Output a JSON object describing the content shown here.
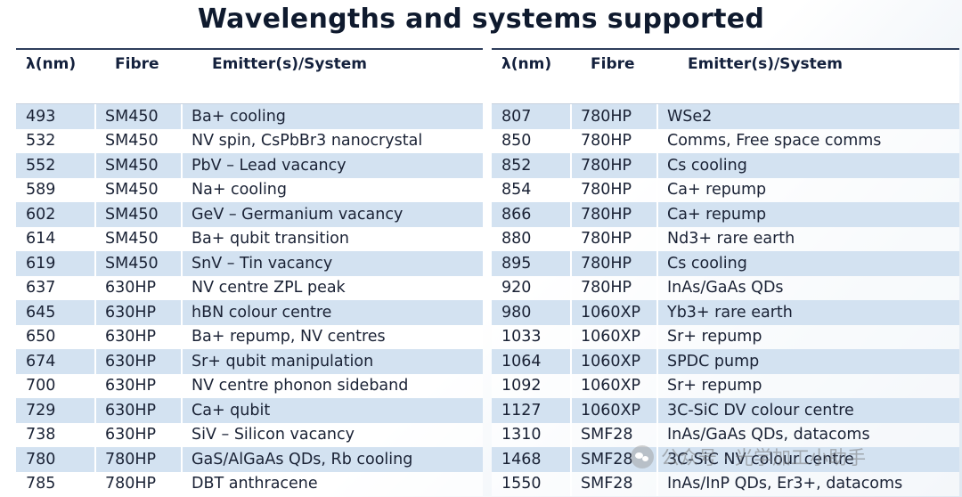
{
  "title": "Wavelengths and systems supported",
  "headers": {
    "wavelength": "λ(nm)",
    "fibre": "Fibre",
    "emitter": "Emitter(s)/System"
  },
  "left_rows": [
    {
      "wl": "493",
      "fibre": "SM450",
      "emitter": "Ba+ cooling"
    },
    {
      "wl": "532",
      "fibre": "SM450",
      "emitter": "NV spin, CsPbBr3 nanocrystal"
    },
    {
      "wl": "552",
      "fibre": "SM450",
      "emitter": "PbV – Lead vacancy"
    },
    {
      "wl": "589",
      "fibre": "SM450",
      "emitter": "Na+ cooling"
    },
    {
      "wl": "602",
      "fibre": "SM450",
      "emitter": "GeV – Germanium vacancy"
    },
    {
      "wl": "614",
      "fibre": "SM450",
      "emitter": "Ba+ qubit transition"
    },
    {
      "wl": "619",
      "fibre": "SM450",
      "emitter": "SnV – Tin vacancy"
    },
    {
      "wl": "637",
      "fibre": "630HP",
      "emitter": "NV centre ZPL peak"
    },
    {
      "wl": "645",
      "fibre": "630HP",
      "emitter": "hBN colour centre"
    },
    {
      "wl": "650",
      "fibre": "630HP",
      "emitter": "Ba+ repump, NV centres"
    },
    {
      "wl": "674",
      "fibre": "630HP",
      "emitter": "Sr+ qubit manipulation"
    },
    {
      "wl": "700",
      "fibre": "630HP",
      "emitter": "NV centre phonon sideband"
    },
    {
      "wl": "729",
      "fibre": "630HP",
      "emitter": "Ca+ qubit"
    },
    {
      "wl": "738",
      "fibre": "630HP",
      "emitter": "SiV – Silicon vacancy"
    },
    {
      "wl": "780",
      "fibre": "780HP",
      "emitter": "GaS/AlGaAs QDs, Rb cooling"
    },
    {
      "wl": "785",
      "fibre": "780HP",
      "emitter": "DBT anthracene"
    }
  ],
  "right_rows": [
    {
      "wl": "807",
      "fibre": "780HP",
      "emitter": "WSe2"
    },
    {
      "wl": "850",
      "fibre": "780HP",
      "emitter": "Comms, Free space comms"
    },
    {
      "wl": "852",
      "fibre": "780HP",
      "emitter": "Cs cooling"
    },
    {
      "wl": "854",
      "fibre": "780HP",
      "emitter": "Ca+ repump"
    },
    {
      "wl": "866",
      "fibre": "780HP",
      "emitter": "Ca+ repump"
    },
    {
      "wl": "880",
      "fibre": "780HP",
      "emitter": "Nd3+ rare earth"
    },
    {
      "wl": "895",
      "fibre": "780HP",
      "emitter": "Cs cooling"
    },
    {
      "wl": "920",
      "fibre": "780HP",
      "emitter": "InAs/GaAs QDs"
    },
    {
      "wl": "980",
      "fibre": "1060XP",
      "emitter": "Yb3+ rare earth"
    },
    {
      "wl": "1033",
      "fibre": "1060XP",
      "emitter": "Sr+ repump"
    },
    {
      "wl": "1064",
      "fibre": "1060XP",
      "emitter": "SPDC pump"
    },
    {
      "wl": "1092",
      "fibre": "1060XP",
      "emitter": "Sr+ repump"
    },
    {
      "wl": "1127",
      "fibre": "1060XP",
      "emitter": "3C-SiC DV colour centre"
    },
    {
      "wl": "1310",
      "fibre": "SMF28",
      "emitter": "InAs/GaAs QDs, datacoms"
    },
    {
      "wl": "1468",
      "fibre": "SMF28",
      "emitter": "3C-SiC NV colour centre"
    },
    {
      "wl": "1550",
      "fibre": "SMF28",
      "emitter": "InAs/InP QDs, Er3+, datacoms"
    }
  ],
  "watermark": "公众号 · 光学加工小助手",
  "colors": {
    "row_shade": "#d3e2f1",
    "header_rule": "#2e3e5c",
    "title": "#0f1a2e"
  }
}
